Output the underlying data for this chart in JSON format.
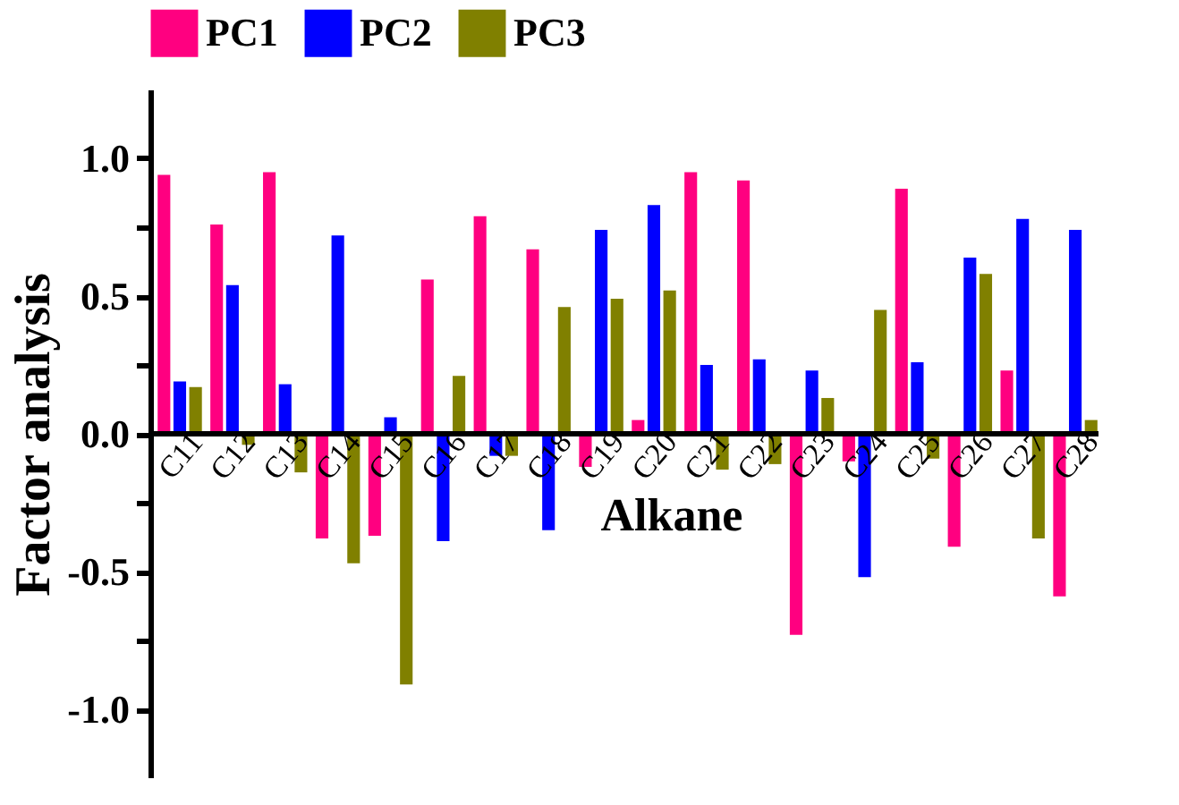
{
  "chart_data": {
    "type": "bar",
    "xlabel": "Alkane",
    "ylabel": "Factor analysis",
    "categories": [
      "C11",
      "C12",
      "C13",
      "C14",
      "C15",
      "C16",
      "C17",
      "C18",
      "C19",
      "C20",
      "C21",
      "C22",
      "C23",
      "C24",
      "C25",
      "C26",
      "C27",
      "C28"
    ],
    "series": [
      {
        "name": "PC1",
        "color": "#ff0080",
        "values": [
          0.94,
          0.76,
          0.95,
          -0.38,
          -0.37,
          0.56,
          0.79,
          0.67,
          -0.12,
          0.05,
          0.95,
          0.92,
          -0.73,
          -0.1,
          0.89,
          -0.41,
          0.23,
          -0.59
        ]
      },
      {
        "name": "PC2",
        "color": "#0000ff",
        "values": [
          0.19,
          0.54,
          0.18,
          0.72,
          0.06,
          -0.39,
          -0.08,
          -0.35,
          0.74,
          0.83,
          0.25,
          0.27,
          0.23,
          -0.52,
          0.26,
          0.64,
          0.78,
          0.74
        ]
      },
      {
        "name": "PC3",
        "color": "#808000",
        "values": [
          0.17,
          -0.04,
          -0.14,
          -0.47,
          -0.91,
          0.21,
          -0.08,
          0.46,
          0.49,
          0.52,
          -0.13,
          -0.11,
          0.13,
          0.45,
          -0.09,
          0.58,
          -0.38,
          0.05
        ]
      }
    ],
    "ylim": [
      -1.25,
      1.25
    ],
    "yticks": [
      {
        "value": -1.0,
        "label": "-1.0"
      },
      {
        "value": -0.75,
        "label": null
      },
      {
        "value": -0.5,
        "label": "-0.5"
      },
      {
        "value": -0.25,
        "label": null
      },
      {
        "value": 0,
        "label": "0.0"
      },
      {
        "value": 0.25,
        "label": null
      },
      {
        "value": 0.5,
        "label": "0.5"
      },
      {
        "value": 0.75,
        "label": null
      },
      {
        "value": 1.0,
        "label": "1.0"
      }
    ],
    "grid": false,
    "legend": "top"
  }
}
